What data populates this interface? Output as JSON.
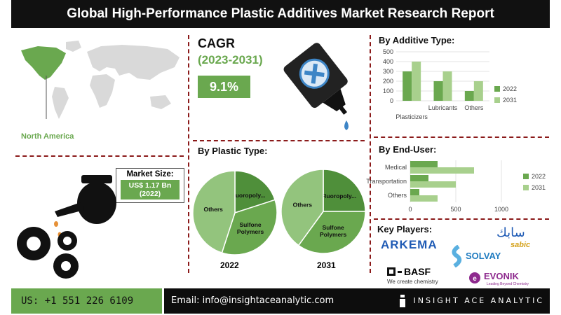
{
  "header": {
    "title": "Global High-Performance Plastic Additives Market Research Report"
  },
  "region": {
    "label": "North America"
  },
  "market_size": {
    "label": "Market Size:",
    "value": "US$ 1.17 Bn",
    "year": "(2022)"
  },
  "cagr": {
    "title": "CAGR",
    "period": "(2023-2031)",
    "value": "9.1%"
  },
  "sections": {
    "additive": "By Additive Type:",
    "plastic": "By Plastic Type:",
    "enduser": "By End-User:",
    "players": "Key Players:"
  },
  "players": {
    "arkema": "ARKEMA",
    "solvay": "SOLVAY",
    "basf": "BASF",
    "basf_tag": "We create chemistry",
    "evonik": "EVONIK",
    "evonik_tag": "Leading Beyond Chemistry",
    "sabic": "sabic",
    "sabic_arabic": "سابك"
  },
  "footer": {
    "phone": "US: +1 551 226 6109",
    "email": "Email: info@insightaceanalytic.com",
    "brand": "INSIGHT ACE ANALYTIC"
  },
  "colors": {
    "dark_green": "#6aa84f",
    "light_green": "#a8d08d",
    "accent_red": "#8b1a1a"
  },
  "chart_data": [
    {
      "type": "bar",
      "title": "By Additive Type:",
      "categories": [
        "Plasticizers",
        "Lubricants",
        "Others"
      ],
      "series": [
        {
          "name": "2022",
          "values": [
            300,
            200,
            100
          ],
          "color": "#6aa84f"
        },
        {
          "name": "2031",
          "values": [
            400,
            300,
            200
          ],
          "color": "#a8d08d"
        }
      ],
      "yticks": [
        "0",
        "100",
        "200",
        "300",
        "400",
        "500"
      ],
      "ylim": [
        0,
        500
      ],
      "legend": "right"
    },
    {
      "type": "pie",
      "label": "2022",
      "slices": [
        {
          "label": "Fluoropoly...",
          "value": 20,
          "color": "#4f8f3a"
        },
        {
          "label": "Sulfone Polymers",
          "value": 35,
          "color": "#6aa84f"
        },
        {
          "label": "Others",
          "value": 45,
          "color": "#93c47d"
        }
      ]
    },
    {
      "type": "pie",
      "label": "2031",
      "slices": [
        {
          "label": "Fluoropoly...",
          "value": 25,
          "color": "#4f8f3a"
        },
        {
          "label": "Sulfone Polymers",
          "value": 35,
          "color": "#6aa84f"
        },
        {
          "label": "Others",
          "value": 40,
          "color": "#93c47d"
        }
      ]
    },
    {
      "type": "bar",
      "orientation": "horizontal",
      "title": "By End-User:",
      "categories": [
        "Medical",
        "Transportation",
        "Others"
      ],
      "series": [
        {
          "name": "2022",
          "values": [
            300,
            200,
            100
          ],
          "color": "#6aa84f"
        },
        {
          "name": "2031",
          "values": [
            700,
            500,
            300
          ],
          "color": "#a8d08d"
        }
      ],
      "xticks": [
        "0",
        "500",
        "1000"
      ],
      "xlim": [
        0,
        1000
      ],
      "legend": "right"
    }
  ]
}
